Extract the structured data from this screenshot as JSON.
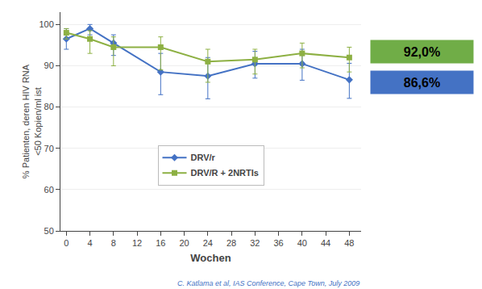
{
  "chart_data": {
    "type": "line",
    "xlabel": "Wochen",
    "ylabel": "% Patienten, deren HIV RNA\n<50 Kopien/ml ist",
    "x": [
      0,
      4,
      8,
      16,
      24,
      32,
      40,
      48
    ],
    "series": [
      {
        "name": "DRV/r",
        "color": "#4472C4",
        "marker": "diamond",
        "line_style": "solid",
        "values": [
          96.5,
          99.0,
          95.5,
          88.5,
          87.5,
          90.5,
          90.5,
          86.6
        ],
        "yerr_low": [
          2.5,
          1.5,
          3.0,
          5.5,
          5.5,
          3.5,
          4.0,
          4.5
        ],
        "yerr_high": [
          2.5,
          1.0,
          2.0,
          4.5,
          4.5,
          3.0,
          3.5,
          4.0
        ]
      },
      {
        "name": "DRV/R + 2NRTIs",
        "color": "#8DB043",
        "marker": "square",
        "line_style": "solid",
        "values": [
          98.0,
          96.5,
          94.5,
          94.5,
          91.0,
          91.5,
          93.0,
          92.0
        ],
        "yerr_low": [
          1.5,
          3.5,
          4.5,
          5.5,
          5.0,
          3.5,
          3.5,
          3.5
        ],
        "yerr_high": [
          1.0,
          2.0,
          2.5,
          2.5,
          3.0,
          2.5,
          2.5,
          2.5
        ]
      }
    ],
    "xlim": [
      -1,
      50
    ],
    "xticks": [
      0,
      4,
      8,
      12,
      16,
      20,
      24,
      28,
      32,
      36,
      40,
      44,
      48
    ],
    "ylim": [
      50,
      103
    ],
    "yticks": [
      50,
      60,
      70,
      80,
      90,
      100
    ],
    "grid": "y",
    "legend": "lower center",
    "annotations": [
      {
        "text": "C. Katlama et al, IAS Conference, Cape Town, July 2009",
        "color": "#4472C4"
      }
    ],
    "boxes": [
      {
        "text": "92,0%",
        "color": "#70AD47"
      },
      {
        "text": "86,6%",
        "color": "#4472C4"
      }
    ]
  }
}
